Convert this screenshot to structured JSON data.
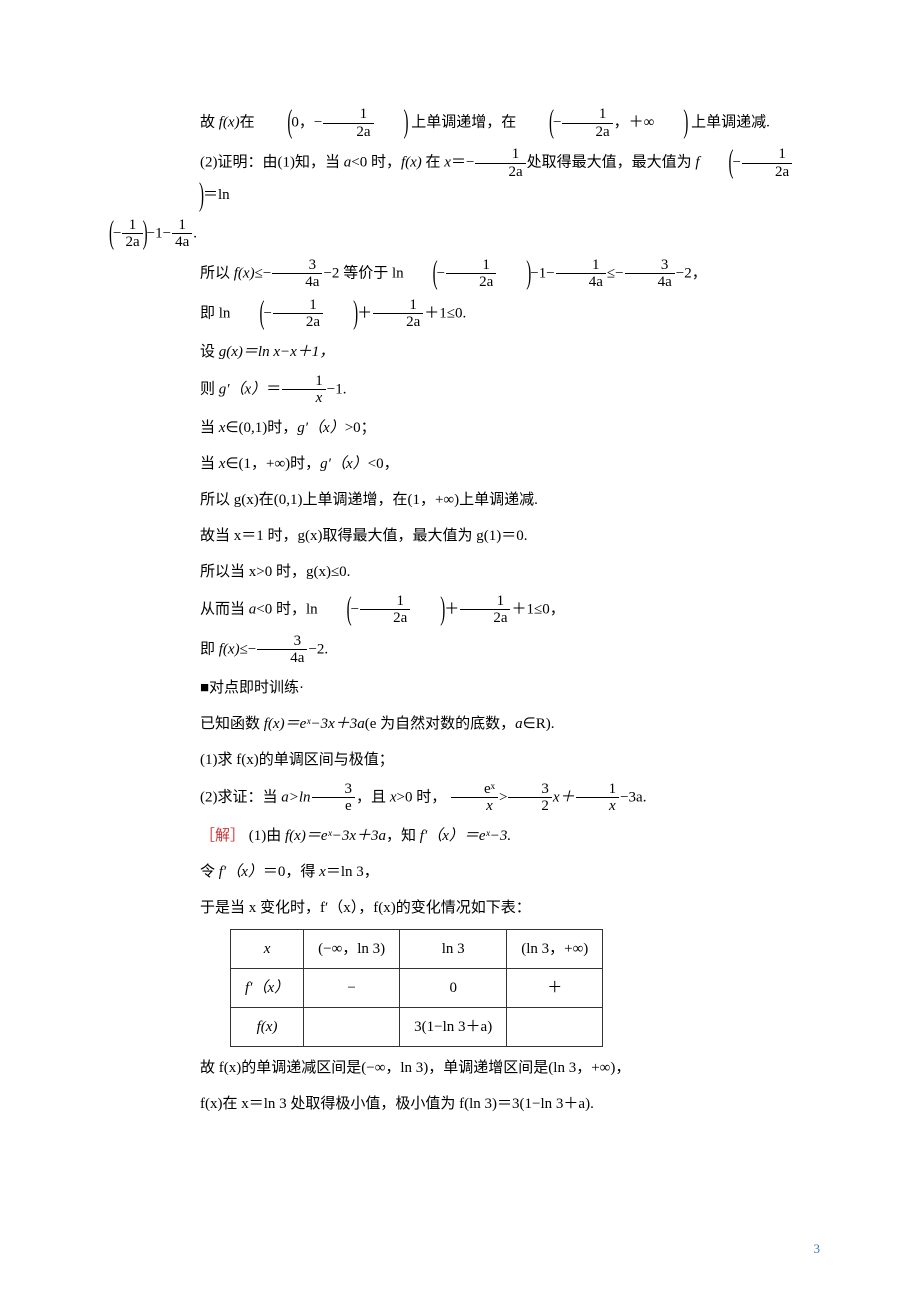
{
  "lines": {
    "l1a": "故 ",
    "l1b": "上单调递增，在",
    "l1c": "上单调递减.",
    "l2a": "(2)证明：由(1)知，当 ",
    "l2b": "<0 时，",
    "l2c": " 在 ",
    "l2d": "处取得最大值，最大值为 ",
    "l4a": "所以 ",
    "l4b": " 等价于 ",
    "l5a": "即 ",
    "l6a": "设 ",
    "l7a": "则 ",
    "l8a": "当 ",
    "l8b": "∈(0,1)时，",
    "l8c": ">0；",
    "l9a": "当 ",
    "l9b": "∈(1，+∞)时，",
    "l9c": "<0，",
    "l10": "所以 g(x)在(0,1)上单调递增，在(1，+∞)上单调递减.",
    "l11": "故当 x＝1 时，g(x)取得最大值，最大值为 g(1)＝0.",
    "l12": "所以当 x>0 时，g(x)≤0.",
    "l13a": "从而当 ",
    "l13b": "<0 时，",
    "l14a": "即 ",
    "l15": "■对点即时训练·",
    "l16a": "已知函数 ",
    "l16b": "(e 为自然对数的底数，",
    "l16c": "∈R).",
    "l17": "(1)求 f(x)的单调区间与极值；",
    "l18a": "(2)求证：当 ",
    "l18b": "，且 ",
    "l18c": ">0 时，",
    "l19a": "［解］",
    "l19b": "  (1)由 ",
    "l19c": "，知 ",
    "l20a": "令 ",
    "l20b": "＝0，得 ",
    "l20c": "＝ln 3，",
    "l21": "于是当 x 变化时，f′（x），f(x)的变化情况如下表：",
    "l22": "故 f(x)的单调递减区间是(−∞，ln 3)，单调递增区间是(ln 3，+∞)，",
    "l23": "f(x)在 x＝ln 3 处取得极小值，极小值为 f(ln 3)＝3(1−ln 3＋a)."
  },
  "math": {
    "f_x": "f(x)",
    "a": "a",
    "x": "x",
    "zero": "0",
    "neg1_2a_n": "1",
    "neg1_2a_d": "2a",
    "infty": "＋∞",
    "f_at": "f",
    "ln": "ln",
    "m3_4a_n": "3",
    "m3_4a_d": "4a",
    "m1_4a_n": "1",
    "m1_4a_d": "4a",
    "minus2": "−2",
    "plus1_le0": "＋1≤0.",
    "g_def": "g(x)＝ln x−x＋1，",
    "gp": "g′（x）",
    "gp_eq": "＝",
    "gp_num": "1",
    "gp_den": "x",
    "gp_tail": "−1.",
    "le0_comma": "≤0，",
    "f_le": "≤−",
    "f_le_tail": "−2.",
    "f_def": "f(x)＝eˣ−3x＋3a",
    "a_gt": "a>ln",
    "three": "3",
    "e": "e",
    "ex_x_n": "eˣ",
    "ex_x_d": "x",
    "gt": ">",
    "three_half_n": "3",
    "three_half_d": "2",
    "x_plus": "x＋",
    "one_x_n": "1",
    "one_x_d": "x",
    "minus3a": "−3a.",
    "fp_def": "f′（x）＝eˣ−3.",
    "fp": "f′（x）"
  },
  "table": {
    "h1": "x",
    "h2": "(−∞，ln 3)",
    "h3": "ln 3",
    "h4": "(ln 3，+∞)",
    "r2c1": "f′（x）",
    "r2c2": "−",
    "r2c3": "0",
    "r2c4": "＋",
    "r3c1": "f(x)",
    "r3c2": "",
    "r3c3": "3(1−ln 3＋a)",
    "r3c4": ""
  },
  "colors": {
    "accent": "#cc3333",
    "pagenum": "#3a7ab8"
  },
  "pagenum": "3"
}
